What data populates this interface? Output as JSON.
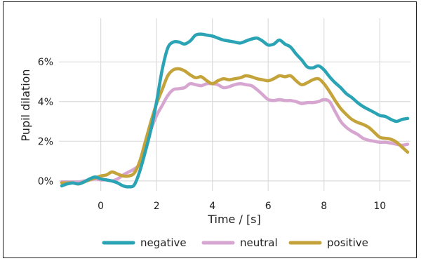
{
  "chart_data": {
    "type": "line",
    "xlabel": "Time / [s]",
    "ylabel": "Pupil dilation",
    "xlim": [
      -1.5,
      11.1
    ],
    "ylim": [
      -0.5,
      8.2
    ],
    "grid": true,
    "legend_position": "bottom",
    "x_ticks": [
      {
        "value": 0,
        "label": "0"
      },
      {
        "value": 2,
        "label": "2"
      },
      {
        "value": 4,
        "label": "4"
      },
      {
        "value": 6,
        "label": "6"
      },
      {
        "value": 8,
        "label": "8"
      },
      {
        "value": 10,
        "label": "10"
      }
    ],
    "y_ticks": [
      {
        "value": 0,
        "label": "0%"
      },
      {
        "value": 2,
        "label": "2%"
      },
      {
        "value": 4,
        "label": "4%"
      },
      {
        "value": 6,
        "label": "6%"
      }
    ],
    "series": [
      {
        "name": "negative",
        "color": "#2aa3b5",
        "points": [
          [
            -1.4,
            -0.25
          ],
          [
            -1.2,
            -0.15
          ],
          [
            -1.0,
            -0.1
          ],
          [
            -0.8,
            -0.15
          ],
          [
            -0.6,
            -0.05
          ],
          [
            -0.4,
            0.1
          ],
          [
            -0.2,
            0.2
          ],
          [
            0,
            0.1
          ],
          [
            0.2,
            0.05
          ],
          [
            0.4,
            0.0
          ],
          [
            0.6,
            -0.1
          ],
          [
            0.8,
            -0.25
          ],
          [
            1.0,
            -0.3
          ],
          [
            1.2,
            -0.2
          ],
          [
            1.4,
            0.5
          ],
          [
            1.6,
            1.5
          ],
          [
            1.8,
            2.6
          ],
          [
            2.0,
            4.0
          ],
          [
            2.2,
            5.6
          ],
          [
            2.4,
            6.7
          ],
          [
            2.6,
            7.0
          ],
          [
            2.8,
            7.0
          ],
          [
            3.0,
            6.9
          ],
          [
            3.2,
            7.05
          ],
          [
            3.4,
            7.35
          ],
          [
            3.6,
            7.4
          ],
          [
            3.8,
            7.35
          ],
          [
            4.0,
            7.3
          ],
          [
            4.2,
            7.2
          ],
          [
            4.4,
            7.1
          ],
          [
            4.6,
            7.05
          ],
          [
            4.8,
            7.0
          ],
          [
            5.0,
            6.95
          ],
          [
            5.2,
            7.05
          ],
          [
            5.4,
            7.15
          ],
          [
            5.6,
            7.2
          ],
          [
            5.8,
            7.05
          ],
          [
            6.0,
            6.85
          ],
          [
            6.2,
            6.9
          ],
          [
            6.4,
            7.1
          ],
          [
            6.6,
            6.9
          ],
          [
            6.8,
            6.75
          ],
          [
            7.0,
            6.4
          ],
          [
            7.2,
            6.1
          ],
          [
            7.4,
            5.75
          ],
          [
            7.6,
            5.7
          ],
          [
            7.8,
            5.8
          ],
          [
            8.0,
            5.6
          ],
          [
            8.2,
            5.25
          ],
          [
            8.4,
            4.95
          ],
          [
            8.6,
            4.7
          ],
          [
            8.8,
            4.4
          ],
          [
            9.0,
            4.2
          ],
          [
            9.2,
            3.95
          ],
          [
            9.4,
            3.75
          ],
          [
            9.6,
            3.6
          ],
          [
            9.8,
            3.45
          ],
          [
            10.0,
            3.3
          ],
          [
            10.2,
            3.25
          ],
          [
            10.4,
            3.1
          ],
          [
            10.6,
            3.0
          ],
          [
            10.8,
            3.1
          ],
          [
            11.0,
            3.15
          ]
        ]
      },
      {
        "name": "neutral",
        "color": "#d6a6d1",
        "points": [
          [
            -1.4,
            -0.05
          ],
          [
            -1.2,
            -0.05
          ],
          [
            -1.0,
            -0.05
          ],
          [
            -0.8,
            -0.05
          ],
          [
            -0.6,
            0.0
          ],
          [
            -0.4,
            0.05
          ],
          [
            -0.2,
            0.1
          ],
          [
            0,
            0.05
          ],
          [
            0.2,
            0.05
          ],
          [
            0.4,
            0.0
          ],
          [
            0.6,
            0.1
          ],
          [
            0.8,
            0.3
          ],
          [
            1.0,
            0.45
          ],
          [
            1.2,
            0.6
          ],
          [
            1.4,
            0.85
          ],
          [
            1.6,
            1.6
          ],
          [
            1.8,
            2.6
          ],
          [
            2.0,
            3.3
          ],
          [
            2.2,
            3.8
          ],
          [
            2.4,
            4.3
          ],
          [
            2.6,
            4.6
          ],
          [
            2.8,
            4.65
          ],
          [
            3.0,
            4.7
          ],
          [
            3.2,
            4.9
          ],
          [
            3.4,
            4.85
          ],
          [
            3.6,
            4.8
          ],
          [
            3.8,
            4.9
          ],
          [
            4.0,
            4.9
          ],
          [
            4.2,
            4.85
          ],
          [
            4.4,
            4.7
          ],
          [
            4.6,
            4.75
          ],
          [
            4.8,
            4.85
          ],
          [
            5.0,
            4.9
          ],
          [
            5.2,
            4.85
          ],
          [
            5.4,
            4.8
          ],
          [
            5.6,
            4.6
          ],
          [
            5.8,
            4.35
          ],
          [
            6.0,
            4.1
          ],
          [
            6.2,
            4.05
          ],
          [
            6.4,
            4.1
          ],
          [
            6.6,
            4.05
          ],
          [
            6.8,
            4.05
          ],
          [
            7.0,
            4.0
          ],
          [
            7.2,
            3.9
          ],
          [
            7.4,
            3.95
          ],
          [
            7.6,
            3.95
          ],
          [
            7.8,
            4.0
          ],
          [
            8.0,
            4.1
          ],
          [
            8.2,
            4.0
          ],
          [
            8.4,
            3.5
          ],
          [
            8.6,
            3.0
          ],
          [
            8.8,
            2.7
          ],
          [
            9.0,
            2.5
          ],
          [
            9.2,
            2.35
          ],
          [
            9.4,
            2.15
          ],
          [
            9.6,
            2.05
          ],
          [
            9.8,
            2.0
          ],
          [
            10.0,
            1.95
          ],
          [
            10.2,
            1.95
          ],
          [
            10.4,
            1.9
          ],
          [
            10.6,
            1.85
          ],
          [
            10.8,
            1.8
          ],
          [
            11.0,
            1.85
          ]
        ]
      },
      {
        "name": "positive",
        "color": "#c4a33a",
        "points": [
          [
            -1.4,
            -0.1
          ],
          [
            -1.2,
            -0.1
          ],
          [
            -1.0,
            -0.1
          ],
          [
            -0.8,
            -0.15
          ],
          [
            -0.6,
            -0.05
          ],
          [
            -0.4,
            0.05
          ],
          [
            -0.2,
            0.15
          ],
          [
            0,
            0.25
          ],
          [
            0.2,
            0.3
          ],
          [
            0.4,
            0.45
          ],
          [
            0.6,
            0.35
          ],
          [
            0.8,
            0.25
          ],
          [
            1.0,
            0.25
          ],
          [
            1.2,
            0.4
          ],
          [
            1.4,
            1.0
          ],
          [
            1.6,
            2.0
          ],
          [
            1.8,
            3.0
          ],
          [
            2.0,
            3.9
          ],
          [
            2.2,
            4.6
          ],
          [
            2.4,
            5.3
          ],
          [
            2.6,
            5.6
          ],
          [
            2.8,
            5.65
          ],
          [
            3.0,
            5.55
          ],
          [
            3.2,
            5.35
          ],
          [
            3.4,
            5.2
          ],
          [
            3.6,
            5.25
          ],
          [
            3.8,
            5.05
          ],
          [
            4.0,
            4.9
          ],
          [
            4.2,
            5.05
          ],
          [
            4.4,
            5.15
          ],
          [
            4.6,
            5.1
          ],
          [
            4.8,
            5.15
          ],
          [
            5.0,
            5.2
          ],
          [
            5.2,
            5.3
          ],
          [
            5.4,
            5.25
          ],
          [
            5.6,
            5.15
          ],
          [
            5.8,
            5.1
          ],
          [
            6.0,
            5.05
          ],
          [
            6.2,
            5.15
          ],
          [
            6.4,
            5.3
          ],
          [
            6.6,
            5.25
          ],
          [
            6.8,
            5.3
          ],
          [
            7.0,
            5.05
          ],
          [
            7.2,
            4.85
          ],
          [
            7.4,
            4.95
          ],
          [
            7.6,
            5.1
          ],
          [
            7.8,
            5.15
          ],
          [
            8.0,
            4.9
          ],
          [
            8.2,
            4.5
          ],
          [
            8.4,
            4.05
          ],
          [
            8.6,
            3.65
          ],
          [
            8.8,
            3.35
          ],
          [
            9.0,
            3.1
          ],
          [
            9.2,
            2.95
          ],
          [
            9.4,
            2.85
          ],
          [
            9.6,
            2.7
          ],
          [
            9.8,
            2.45
          ],
          [
            10.0,
            2.2
          ],
          [
            10.2,
            2.15
          ],
          [
            10.4,
            2.1
          ],
          [
            10.6,
            1.95
          ],
          [
            10.8,
            1.7
          ],
          [
            11.0,
            1.45
          ]
        ]
      }
    ]
  }
}
